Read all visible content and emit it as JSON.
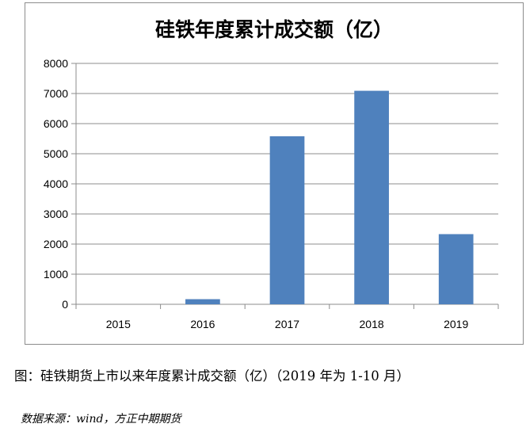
{
  "chart_data": {
    "type": "bar",
    "title": "硅铁年度累计成交额（亿）",
    "categories": [
      "2015",
      "2016",
      "2017",
      "2018",
      "2019"
    ],
    "values": [
      0,
      170,
      5580,
      7090,
      2330
    ],
    "ylim": [
      0,
      8000
    ],
    "yticks": [
      "0",
      "1000",
      "2000",
      "3000",
      "4000",
      "5000",
      "6000",
      "7000",
      "8000"
    ],
    "xlabel": "",
    "ylabel": "",
    "grid": true,
    "bar_color": "#4f81bd",
    "grid_color": "#8c8c8c"
  },
  "caption": "图：硅铁期货上市以来年度累计成交额（亿）（2019 年为 1-10 月）",
  "source": "数据来源：wind，方正中期期货"
}
